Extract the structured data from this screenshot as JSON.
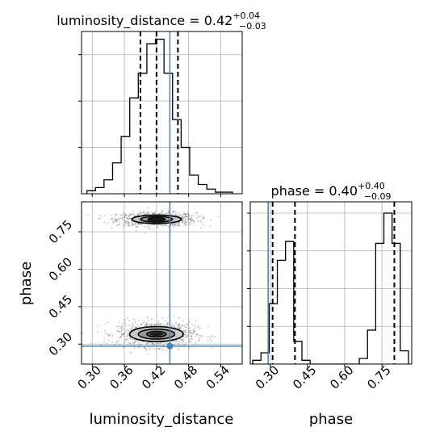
{
  "chart_data": [
    {
      "type": "histogram",
      "panel": "luminosity_distance marginal",
      "title_param": "luminosity_distance",
      "title_value": "0.42",
      "title_plus": "+0.04",
      "title_minus": "−0.03",
      "xlim": [
        0.28,
        0.58
      ],
      "xticks": [
        0.3,
        0.36,
        0.42,
        0.48,
        0.54
      ],
      "grid": true,
      "bin_edges": [
        0.29,
        0.306,
        0.322,
        0.338,
        0.354,
        0.37,
        0.386,
        0.402,
        0.418,
        0.434,
        0.45,
        0.466,
        0.482,
        0.498,
        0.514,
        0.53,
        0.546,
        0.562
      ],
      "counts": [
        0.02,
        0.04,
        0.09,
        0.2,
        0.37,
        0.62,
        0.78,
        0.97,
        1.0,
        0.78,
        0.48,
        0.3,
        0.12,
        0.06,
        0.03,
        0.01,
        0.01
      ],
      "quantiles": [
        0.39,
        0.42,
        0.46
      ],
      "truth": 0.445
    },
    {
      "type": "histogram",
      "panel": "phase marginal",
      "title_param": "phase",
      "title_value": "0.40",
      "title_plus": "+0.40",
      "title_minus": "−0.09",
      "xlim": [
        0.22,
        0.87
      ],
      "xticks": [
        0.3,
        0.45,
        0.6,
        0.75
      ],
      "xticklabels": [
        "0.30",
        "0.45",
        "0.60",
        "0.75"
      ],
      "xlabel": "phase",
      "grid": true,
      "bin_edges": [
        0.23,
        0.263,
        0.296,
        0.329,
        0.362,
        0.395,
        0.428,
        0.461,
        0.494,
        0.527,
        0.56,
        0.593,
        0.626,
        0.659,
        0.692,
        0.725,
        0.758,
        0.791,
        0.824,
        0.857
      ],
      "counts": [
        0.02,
        0.06,
        0.32,
        0.55,
        0.65,
        0.12,
        0.02,
        0.0,
        0.0,
        0.0,
        0.0,
        0.0,
        0.0,
        0.03,
        0.18,
        0.64,
        0.8,
        0.64,
        0.07
      ],
      "quantiles": [
        0.31,
        0.4,
        0.8
      ],
      "truth": 0.292
    },
    {
      "type": "scatter",
      "panel": "luminosity_distance vs phase 2D posterior",
      "xlim": [
        0.28,
        0.58
      ],
      "ylim": [
        0.22,
        0.87
      ],
      "xticks": [
        0.3,
        0.36,
        0.42,
        0.48,
        0.54
      ],
      "xticklabels": [
        "0.30",
        "0.36",
        "0.42",
        "0.48",
        "0.54"
      ],
      "yticks": [
        0.3,
        0.45,
        0.6,
        0.75
      ],
      "yticklabels": [
        "0.30",
        "0.45",
        "0.60",
        "0.75"
      ],
      "xlabel": "luminosity_distance",
      "ylabel": "phase",
      "grid": true,
      "modes": [
        {
          "x": 0.42,
          "y": 0.8,
          "sx": 0.032,
          "sy": 0.012,
          "contour_levels": [
            [
              0.046,
              0.017
            ],
            [
              0.03,
              0.011
            ],
            [
              0.016,
              0.006
            ]
          ]
        },
        {
          "x": 0.42,
          "y": 0.34,
          "sx": 0.032,
          "sy": 0.022,
          "contour_levels": [
            [
              0.05,
              0.03
            ],
            [
              0.034,
              0.02
            ],
            [
              0.018,
              0.011
            ]
          ]
        }
      ],
      "truth": {
        "x": 0.445,
        "y": 0.292
      }
    }
  ],
  "colors": {
    "hist": "#000000",
    "quantile": "#000000",
    "truth": "#4682b4",
    "grid": "#b0b0b0",
    "scatter": "#555555",
    "contour_fill": [
      "#c9c9c9",
      "#8f8f8f",
      "#505050",
      "#1a1a1a"
    ]
  }
}
